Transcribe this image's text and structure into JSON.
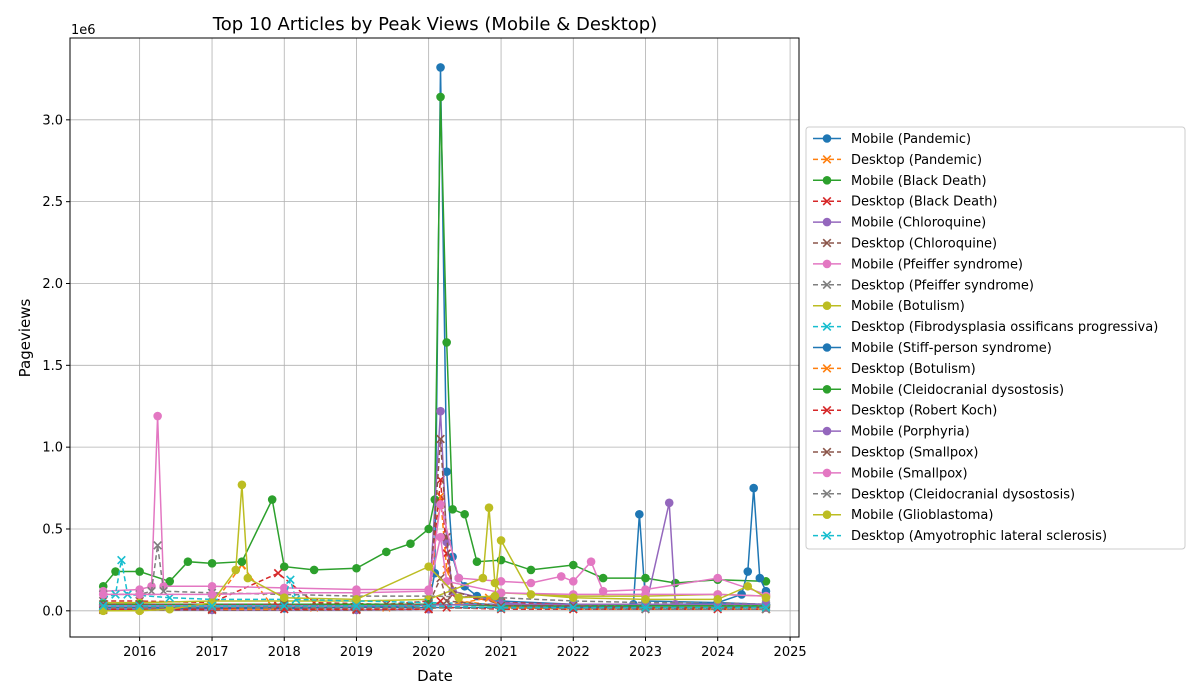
{
  "chart_data": {
    "type": "line",
    "title": "Top 10 Articles by Peak Views (Mobile & Desktop)",
    "xlabel": "Date",
    "ylabel": "Pageviews",
    "y_offset_label": "1e6",
    "xlim": [
      "2015-01-14",
      "2025-02-15"
    ],
    "ylim": [
      -160000,
      3500000
    ],
    "grid": true,
    "legend_position": "center-right outside",
    "x_ticks": [
      "2016",
      "2017",
      "2018",
      "2019",
      "2020",
      "2021",
      "2022",
      "2023",
      "2024",
      "2025"
    ],
    "y_ticks": [
      "0.0",
      "0.5",
      "1.0",
      "1.5",
      "2.0",
      "2.5",
      "3.0"
    ],
    "series": [
      {
        "name": "Mobile (Pandemic)",
        "color": "#1f77b4",
        "marker": "o",
        "dashed": false,
        "x": [
          "2015-07-01",
          "2016-01-01",
          "2017-01-01",
          "2018-01-01",
          "2019-01-01",
          "2019-10-01",
          "2020-01-01",
          "2020-02-01",
          "2020-03-01",
          "2020-04-01",
          "2020-05-01",
          "2020-06-01",
          "2020-07-01",
          "2020-09-01",
          "2021-01-01",
          "2022-01-01",
          "2022-11-01",
          "2022-12-01",
          "2023-01-01",
          "2024-01-01",
          "2024-09-01"
        ],
        "y": [
          10000,
          10000,
          15000,
          15000,
          20000,
          30000,
          40000,
          230000,
          3320000,
          850000,
          330000,
          200000,
          150000,
          90000,
          60000,
          40000,
          40000,
          590000,
          60000,
          50000,
          40000
        ]
      },
      {
        "name": "Desktop (Pandemic)",
        "color": "#ff7f0e",
        "marker": "x",
        "dashed": true,
        "x": [
          "2015-07-01",
          "2016-01-01",
          "2017-01-01",
          "2017-06-01",
          "2017-11-01",
          "2018-06-01",
          "2019-06-01",
          "2020-01-01",
          "2020-03-01",
          "2020-04-01",
          "2020-06-01",
          "2021-01-01",
          "2022-01-01",
          "2023-01-01",
          "2024-01-01",
          "2024-09-01"
        ],
        "y": [
          20000,
          20000,
          30000,
          280000,
          30000,
          20000,
          20000,
          30000,
          700000,
          250000,
          60000,
          30000,
          20000,
          20000,
          20000,
          20000
        ]
      },
      {
        "name": "Mobile (Black Death)",
        "color": "#2ca02c",
        "marker": "o",
        "dashed": false,
        "x": [
          "2015-07-01",
          "2015-09-01",
          "2016-01-01",
          "2016-06-01",
          "2016-09-01",
          "2017-01-01",
          "2017-06-01",
          "2017-11-01",
          "2018-01-01",
          "2018-06-01",
          "2019-01-01",
          "2019-06-01",
          "2019-10-01",
          "2020-01-01",
          "2020-02-01",
          "2020-03-01",
          "2020-04-01",
          "2020-05-01",
          "2020-07-01",
          "2020-09-01",
          "2021-01-01",
          "2021-06-01",
          "2022-01-01",
          "2022-06-01",
          "2023-01-01",
          "2023-06-01",
          "2024-01-01",
          "2024-09-01"
        ],
        "y": [
          150000,
          240000,
          240000,
          180000,
          300000,
          290000,
          300000,
          680000,
          270000,
          250000,
          260000,
          360000,
          410000,
          500000,
          680000,
          3140000,
          1640000,
          620000,
          590000,
          300000,
          310000,
          250000,
          280000,
          200000,
          200000,
          170000,
          190000,
          180000
        ]
      },
      {
        "name": "Desktop (Black Death)",
        "color": "#d62728",
        "marker": "x",
        "dashed": true,
        "x": [
          "2015-07-01",
          "2016-01-01",
          "2017-01-01",
          "2017-12-01",
          "2018-06-01",
          "2019-06-01",
          "2020-01-01",
          "2020-03-01",
          "2020-04-01",
          "2020-05-01",
          "2021-01-01",
          "2022-01-01",
          "2023-01-01",
          "2024-01-01",
          "2024-09-01"
        ],
        "y": [
          60000,
          60000,
          50000,
          230000,
          50000,
          40000,
          60000,
          800000,
          350000,
          100000,
          50000,
          40000,
          30000,
          30000,
          30000
        ]
      },
      {
        "name": "Mobile (Chloroquine)",
        "color": "#9467bd",
        "marker": "o",
        "dashed": false,
        "x": [
          "2015-07-01",
          "2017-01-01",
          "2019-01-01",
          "2020-01-01",
          "2020-03-01",
          "2020-04-01",
          "2020-05-01",
          "2021-01-01",
          "2022-01-01",
          "2023-01-01",
          "2023-05-01",
          "2023-06-01",
          "2024-09-01"
        ],
        "y": [
          5000,
          5000,
          5000,
          10000,
          1220000,
          420000,
          120000,
          50000,
          20000,
          20000,
          660000,
          40000,
          20000
        ]
      },
      {
        "name": "Desktop (Chloroquine)",
        "color": "#8c564b",
        "marker": "x",
        "dashed": true,
        "x": [
          "2015-07-01",
          "2017-01-01",
          "2019-01-01",
          "2020-01-01",
          "2020-03-01",
          "2020-04-01",
          "2020-05-01",
          "2021-01-01",
          "2022-01-01",
          "2024-09-01"
        ],
        "y": [
          5000,
          5000,
          5000,
          10000,
          1050000,
          450000,
          120000,
          40000,
          20000,
          10000
        ]
      },
      {
        "name": "Mobile (Pfeiffer syndrome)",
        "color": "#e377c2",
        "marker": "o",
        "dashed": false,
        "x": [
          "2015-07-01",
          "2016-01-01",
          "2016-03-01",
          "2016-04-01",
          "2016-05-01",
          "2017-01-01",
          "2018-01-01",
          "2019-01-01",
          "2020-01-01",
          "2020-03-01",
          "2020-06-01",
          "2021-01-01",
          "2021-06-01",
          "2021-11-01",
          "2022-01-01",
          "2022-04-01",
          "2022-06-01",
          "2023-01-01",
          "2024-01-01",
          "2024-09-01"
        ],
        "y": [
          120000,
          130000,
          150000,
          1190000,
          150000,
          150000,
          140000,
          130000,
          130000,
          650000,
          200000,
          180000,
          170000,
          210000,
          180000,
          300000,
          120000,
          130000,
          200000,
          100000
        ]
      },
      {
        "name": "Desktop (Pfeiffer syndrome)",
        "color": "#7f7f7f",
        "marker": "x",
        "dashed": true,
        "x": [
          "2015-07-01",
          "2016-01-01",
          "2016-03-01",
          "2016-04-01",
          "2016-05-01",
          "2017-01-01",
          "2018-01-01",
          "2019-01-01",
          "2020-01-01",
          "2021-01-01",
          "2022-01-01",
          "2023-01-01",
          "2024-01-01",
          "2024-09-01"
        ],
        "y": [
          100000,
          100000,
          120000,
          400000,
          120000,
          110000,
          100000,
          90000,
          90000,
          80000,
          60000,
          50000,
          50000,
          40000
        ]
      },
      {
        "name": "Mobile (Botulism)",
        "color": "#bcbd22",
        "marker": "o",
        "dashed": false,
        "x": [
          "2015-07-01",
          "2016-01-01",
          "2017-01-01",
          "2018-01-01",
          "2019-01-01",
          "2020-01-01",
          "2020-10-01",
          "2020-11-01",
          "2020-12-01",
          "2021-01-01",
          "2022-01-01",
          "2023-01-01",
          "2024-01-01",
          "2024-09-01"
        ],
        "y": [
          50000,
          50000,
          60000,
          60000,
          60000,
          70000,
          200000,
          630000,
          170000,
          110000,
          90000,
          90000,
          100000,
          90000
        ]
      },
      {
        "name": "Desktop (Fibrodysplasia ossificans progressiva)",
        "color": "#17becf",
        "marker": "x",
        "dashed": true,
        "x": [
          "2015-07-01",
          "2015-09-01",
          "2015-10-01",
          "2015-11-01",
          "2016-06-01",
          "2017-01-01",
          "2018-01-01",
          "2018-02-01",
          "2018-03-01",
          "2019-01-01",
          "2020-01-01",
          "2021-01-01",
          "2022-01-01",
          "2023-01-01",
          "2024-01-01",
          "2024-09-01"
        ],
        "y": [
          80000,
          100000,
          310000,
          100000,
          80000,
          70000,
          70000,
          190000,
          70000,
          60000,
          50000,
          40000,
          40000,
          30000,
          30000,
          30000
        ]
      },
      {
        "name": "Mobile (Stiff-person syndrome)",
        "color": "#1f77b4",
        "marker": "o",
        "dashed": false,
        "x": [
          "2015-07-01",
          "2017-01-01",
          "2019-01-01",
          "2021-01-01",
          "2022-01-01",
          "2023-01-01",
          "2024-01-01",
          "2024-05-01",
          "2024-06-01",
          "2024-07-01",
          "2024-08-01",
          "2024-09-01"
        ],
        "y": [
          20000,
          20000,
          20000,
          20000,
          20000,
          30000,
          50000,
          100000,
          240000,
          750000,
          200000,
          120000
        ]
      },
      {
        "name": "Desktop (Botulism)",
        "color": "#ff7f0e",
        "marker": "x",
        "dashed": true,
        "x": [
          "2015-07-01",
          "2017-01-01",
          "2019-01-01",
          "2020-01-01",
          "2020-11-01",
          "2021-01-01",
          "2022-01-01",
          "2024-09-01"
        ],
        "y": [
          10000,
          10000,
          10000,
          10000,
          80000,
          20000,
          10000,
          10000
        ]
      },
      {
        "name": "Mobile (Cleidocranial dysostosis)",
        "color": "#2ca02c",
        "marker": "o",
        "dashed": false,
        "x": [
          "2015-07-01",
          "2016-01-01",
          "2017-01-01",
          "2018-01-01",
          "2019-01-01",
          "2020-01-01",
          "2021-01-01",
          "2022-01-01",
          "2023-01-01",
          "2024-01-01",
          "2024-09-01"
        ],
        "y": [
          40000,
          40000,
          40000,
          40000,
          40000,
          40000,
          30000,
          30000,
          30000,
          30000,
          30000
        ]
      },
      {
        "name": "Desktop (Robert Koch)",
        "color": "#d62728",
        "marker": "x",
        "dashed": true,
        "x": [
          "2015-07-01",
          "2016-01-01",
          "2017-01-01",
          "2017-12-01",
          "2018-01-01",
          "2019-01-01",
          "2020-01-01",
          "2020-03-01",
          "2020-04-01",
          "2021-01-01",
          "2022-01-01",
          "2023-01-01",
          "2024-01-01",
          "2024-09-01"
        ],
        "y": [
          10000,
          10000,
          10000,
          30000,
          10000,
          10000,
          10000,
          60000,
          20000,
          10000,
          10000,
          10000,
          10000,
          10000
        ]
      },
      {
        "name": "Mobile (Porphyria)",
        "color": "#9467bd",
        "marker": "o",
        "dashed": false,
        "x": [
          "2015-07-01",
          "2017-01-01",
          "2019-01-01",
          "2021-01-01",
          "2022-01-01",
          "2023-01-01",
          "2024-01-01",
          "2024-09-01"
        ],
        "y": [
          30000,
          30000,
          30000,
          40000,
          40000,
          40000,
          40000,
          40000
        ]
      },
      {
        "name": "Desktop (Smallpox)",
        "color": "#8c564b",
        "marker": "x",
        "dashed": true,
        "x": [
          "2015-07-01",
          "2016-01-01",
          "2017-01-01",
          "2018-01-01",
          "2019-01-01",
          "2020-01-01",
          "2020-03-01",
          "2020-04-01",
          "2021-01-01",
          "2022-01-01",
          "2023-01-01",
          "2024-01-01",
          "2024-09-01"
        ],
        "y": [
          40000,
          40000,
          40000,
          40000,
          30000,
          40000,
          200000,
          60000,
          30000,
          30000,
          20000,
          20000,
          20000
        ]
      },
      {
        "name": "Mobile (Smallpox)",
        "color": "#e377c2",
        "marker": "o",
        "dashed": false,
        "x": [
          "2015-07-01",
          "2016-01-01",
          "2017-01-01",
          "2018-01-01",
          "2019-01-01",
          "2020-01-01",
          "2020-03-01",
          "2020-04-01",
          "2021-01-01",
          "2022-01-01",
          "2023-01-01",
          "2024-01-01",
          "2024-09-01"
        ],
        "y": [
          100000,
          100000,
          100000,
          110000,
          110000,
          120000,
          450000,
          180000,
          110000,
          100000,
          100000,
          100000,
          90000
        ]
      },
      {
        "name": "Desktop (Cleidocranial dysostosis)",
        "color": "#7f7f7f",
        "marker": "x",
        "dashed": true,
        "x": [
          "2015-07-01",
          "2017-01-01",
          "2019-01-01",
          "2021-01-01",
          "2023-01-01",
          "2024-09-01"
        ],
        "y": [
          20000,
          20000,
          20000,
          15000,
          10000,
          10000
        ]
      },
      {
        "name": "Mobile (Glioblastoma)",
        "color": "#bcbd22",
        "marker": "o",
        "dashed": false,
        "x": [
          "2015-07-01",
          "2016-01-01",
          "2016-06-01",
          "2017-01-01",
          "2017-05-01",
          "2017-06-01",
          "2017-07-01",
          "2018-01-01",
          "2019-01-01",
          "2020-01-01",
          "2020-06-01",
          "2020-12-01",
          "2021-01-01",
          "2021-06-01",
          "2022-01-01",
          "2023-01-01",
          "2024-01-01",
          "2024-06-01",
          "2024-09-01"
        ],
        "y": [
          0,
          0,
          10000,
          50000,
          250000,
          770000,
          200000,
          80000,
          70000,
          270000,
          80000,
          90000,
          430000,
          100000,
          80000,
          70000,
          70000,
          150000,
          80000
        ]
      },
      {
        "name": "Desktop (Amyotrophic lateral sclerosis)",
        "color": "#17becf",
        "marker": "x",
        "dashed": true,
        "x": [
          "2015-07-01",
          "2016-01-01",
          "2017-01-01",
          "2018-01-01",
          "2019-01-01",
          "2020-01-01",
          "2021-01-01",
          "2022-01-01",
          "2023-01-01",
          "2024-01-01",
          "2024-09-01"
        ],
        "y": [
          30000,
          30000,
          30000,
          30000,
          30000,
          30000,
          20000,
          20000,
          20000,
          20000,
          20000
        ]
      }
    ]
  }
}
